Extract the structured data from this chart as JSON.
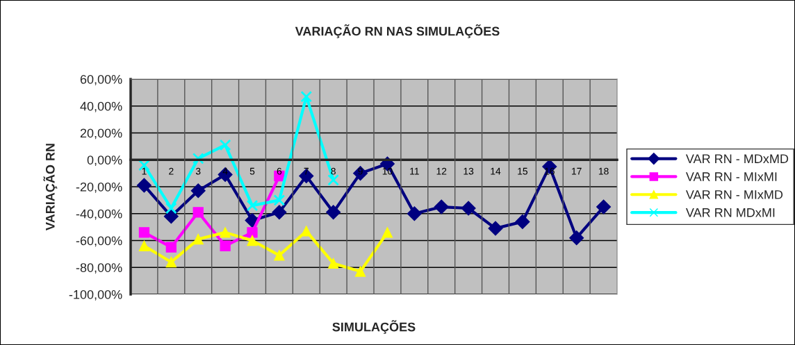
{
  "chart_data": {
    "type": "line",
    "title": "VARIAÇÃO RN NAS SIMULAÇÕES",
    "xlabel": "SIMULAÇÕES",
    "ylabel": "VARIAÇÃO RN",
    "categories": [
      "1",
      "2",
      "3",
      "4",
      "5",
      "6",
      "7",
      "8",
      "9",
      "10",
      "11",
      "12",
      "13",
      "14",
      "15",
      "16",
      "17",
      "18"
    ],
    "series": [
      {
        "name": "VAR RN - MDxMD",
        "color": "#000080",
        "marker": "diamond",
        "values": [
          -19,
          -42,
          -23,
          -11,
          -45,
          -39,
          -12,
          -39,
          -10,
          -3,
          -40,
          -35,
          -36,
          -51,
          -46,
          -5,
          -58,
          -35
        ]
      },
      {
        "name": "VAR RN - MIxMI",
        "color": "#ff00ff",
        "marker": "square",
        "values": [
          -54,
          -65,
          -39,
          -64,
          -54,
          -12,
          null,
          null,
          null,
          null,
          null,
          null,
          null,
          null,
          null,
          null,
          null,
          null
        ]
      },
      {
        "name": "VAR RN - MIxMD",
        "color": "#ffff00",
        "marker": "triangle",
        "values": [
          -64,
          -76,
          -59,
          -54,
          -60,
          -71,
          -53,
          -77,
          -83,
          -54,
          null,
          null,
          null,
          null,
          null,
          null,
          null,
          null
        ]
      },
      {
        "name": "VAR RN MDxMI",
        "color": "#00ffff",
        "marker": "cross",
        "values": [
          -4,
          -36,
          1,
          11,
          -34,
          -30,
          47,
          -15,
          null,
          null,
          null,
          null,
          null,
          null,
          null,
          null,
          null,
          null
        ]
      }
    ],
    "ylim": [
      -100,
      60
    ],
    "yticks": [
      {
        "value": -100,
        "label": "-100,00%"
      },
      {
        "value": -80,
        "label": "-80,00%"
      },
      {
        "value": -60,
        "label": "-60,00%"
      },
      {
        "value": -40,
        "label": "-40,00%"
      },
      {
        "value": -20,
        "label": "-20,00%"
      },
      {
        "value": 0,
        "label": "0,00%"
      },
      {
        "value": 20,
        "label": "20,00%"
      },
      {
        "value": 40,
        "label": "40,00%"
      },
      {
        "value": 60,
        "label": "60,00%"
      }
    ],
    "grid": true,
    "legend": "right"
  }
}
